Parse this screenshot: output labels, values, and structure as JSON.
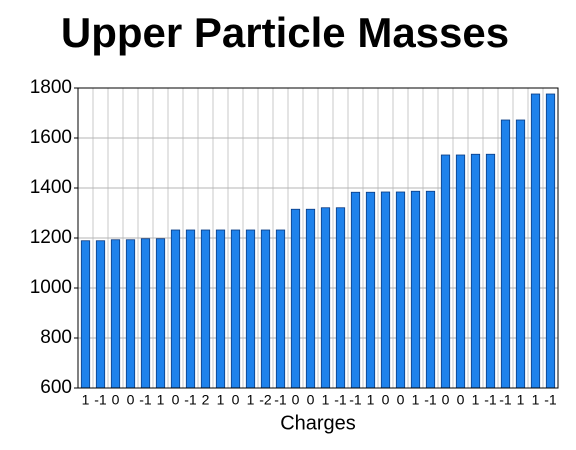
{
  "chart_data": {
    "type": "bar",
    "title": "Upper Particle Masses",
    "x_label": "Charges",
    "categories": [
      "1",
      "-1",
      "0",
      "0",
      "-1",
      "1",
      "0",
      "-1",
      "2",
      "1",
      "0",
      "1",
      "-2",
      "-1",
      "0",
      "0",
      "1",
      "-1",
      "-1",
      "1",
      "0",
      "0",
      "1",
      "-1",
      "0",
      "0",
      "1",
      "-1",
      "-1",
      "1",
      "1",
      "-1"
    ],
    "values": [
      1189,
      1189,
      1193,
      1193,
      1197,
      1197,
      1232,
      1232,
      1232,
      1232,
      1232,
      1232,
      1232,
      1232,
      1315,
      1315,
      1321,
      1321,
      1383,
      1383,
      1384,
      1384,
      1387,
      1387,
      1532,
      1532,
      1535,
      1535,
      1672,
      1672,
      1776,
      1776
    ],
    "color": "#1e82ec",
    "ylim": [
      600,
      1800
    ],
    "yticks": [
      600,
      800,
      1000,
      1200,
      1400,
      1600,
      1800
    ],
    "grid": true
  }
}
